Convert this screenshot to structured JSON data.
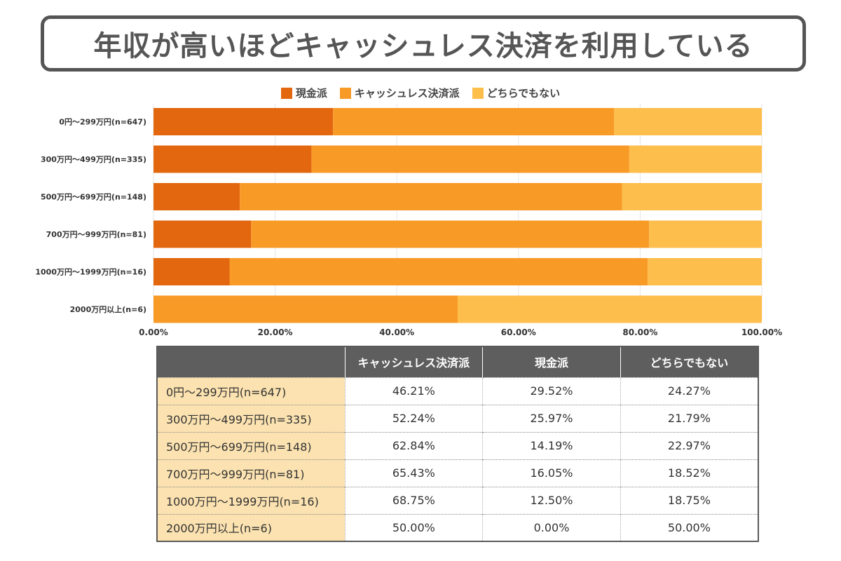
{
  "title": "年収が高いほどキャッシュレス決済を利用している",
  "colors": {
    "cash": "#e2670f",
    "cashless": "#f89a26",
    "neither": "#fdbe4c"
  },
  "legend": [
    {
      "label": "現金派",
      "color": "#e2670f"
    },
    {
      "label": "キャッシュレス決済派",
      "color": "#f89a26"
    },
    {
      "label": "どちらでもない",
      "color": "#fdbe4c"
    }
  ],
  "chart_data": {
    "type": "bar",
    "orientation": "horizontal",
    "stacked": true,
    "categories": [
      "0円〜299万円(n=647)",
      "300万円〜499万円(n=335)",
      "500万円〜699万円(n=148)",
      "700万円〜999万円(n=81)",
      "1000万円〜1999万円(n=16)",
      "2000万円以上(n=6)"
    ],
    "series": [
      {
        "name": "現金派",
        "values": [
          29.52,
          25.97,
          14.19,
          16.05,
          12.5,
          0.0
        ]
      },
      {
        "name": "キャッシュレス決済派",
        "values": [
          46.21,
          52.24,
          62.84,
          65.43,
          68.75,
          50.0
        ]
      },
      {
        "name": "どちらでもない",
        "values": [
          24.27,
          21.79,
          22.97,
          18.52,
          18.75,
          50.0
        ]
      }
    ],
    "xlim": [
      0,
      100
    ],
    "xticks": [
      "0.00%",
      "20.00%",
      "40.00%",
      "60.00%",
      "80.00%",
      "100.00%"
    ],
    "legend_position": "top-center",
    "grid": true
  },
  "table": {
    "headers": [
      "",
      "キャッシュレス決済派",
      "現金派",
      "どちらでもない"
    ],
    "rows": [
      [
        "0円〜299万円(n=647)",
        "46.21%",
        "29.52%",
        "24.27%"
      ],
      [
        "300万円〜499万円(n=335)",
        "52.24%",
        "25.97%",
        "21.79%"
      ],
      [
        "500万円〜699万円(n=148)",
        "62.84%",
        "14.19%",
        "22.97%"
      ],
      [
        "700万円〜999万円(n=81)",
        "65.43%",
        "16.05%",
        "18.52%"
      ],
      [
        "1000万円〜1999万円(n=16)",
        "68.75%",
        "12.50%",
        "18.75%"
      ],
      [
        "2000万円以上(n=6)",
        "50.00%",
        "0.00%",
        "50.00%"
      ]
    ]
  }
}
